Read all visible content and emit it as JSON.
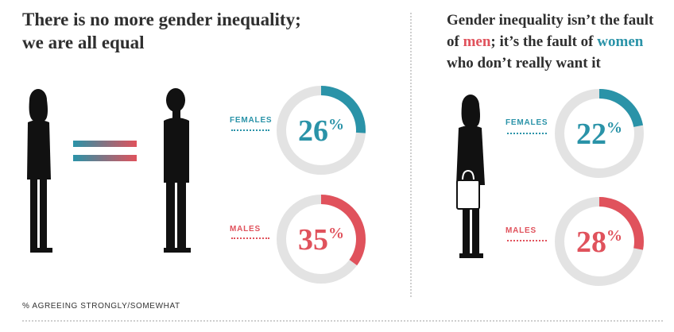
{
  "left_panel": {
    "headline_line1": "There is no more gender inequality;",
    "headline_line2": "we are all equal"
  },
  "right_panel": {
    "headline_part1": "Gender inequality isn’t the fault",
    "headline_part2": "of ",
    "headline_men": "men",
    "headline_part3": "; it’s the fault of ",
    "headline_women": "women",
    "headline_part4": "who don’t really want it"
  },
  "footnote": "% AGREEING STRONGLY/SOMEWHAT",
  "colors": {
    "female": "#2a93a8",
    "male": "#e0525c",
    "track": "#e3e3e3",
    "headline": "#2f2f2f"
  },
  "chart_data": [
    {
      "type": "pie",
      "title": "There is no more gender inequality; we are all equal",
      "unit": "%",
      "series": [
        {
          "name": "FEMALES",
          "value": 26,
          "label": "26%"
        },
        {
          "name": "MALES",
          "value": 35,
          "label": "35%"
        }
      ]
    },
    {
      "type": "pie",
      "title": "Gender inequality isn’t the fault of men; it’s the fault of women who don’t really want it",
      "unit": "%",
      "series": [
        {
          "name": "FEMALES",
          "value": 22,
          "label": "22%"
        },
        {
          "name": "MALES",
          "value": 28,
          "label": "28%"
        }
      ]
    }
  ]
}
